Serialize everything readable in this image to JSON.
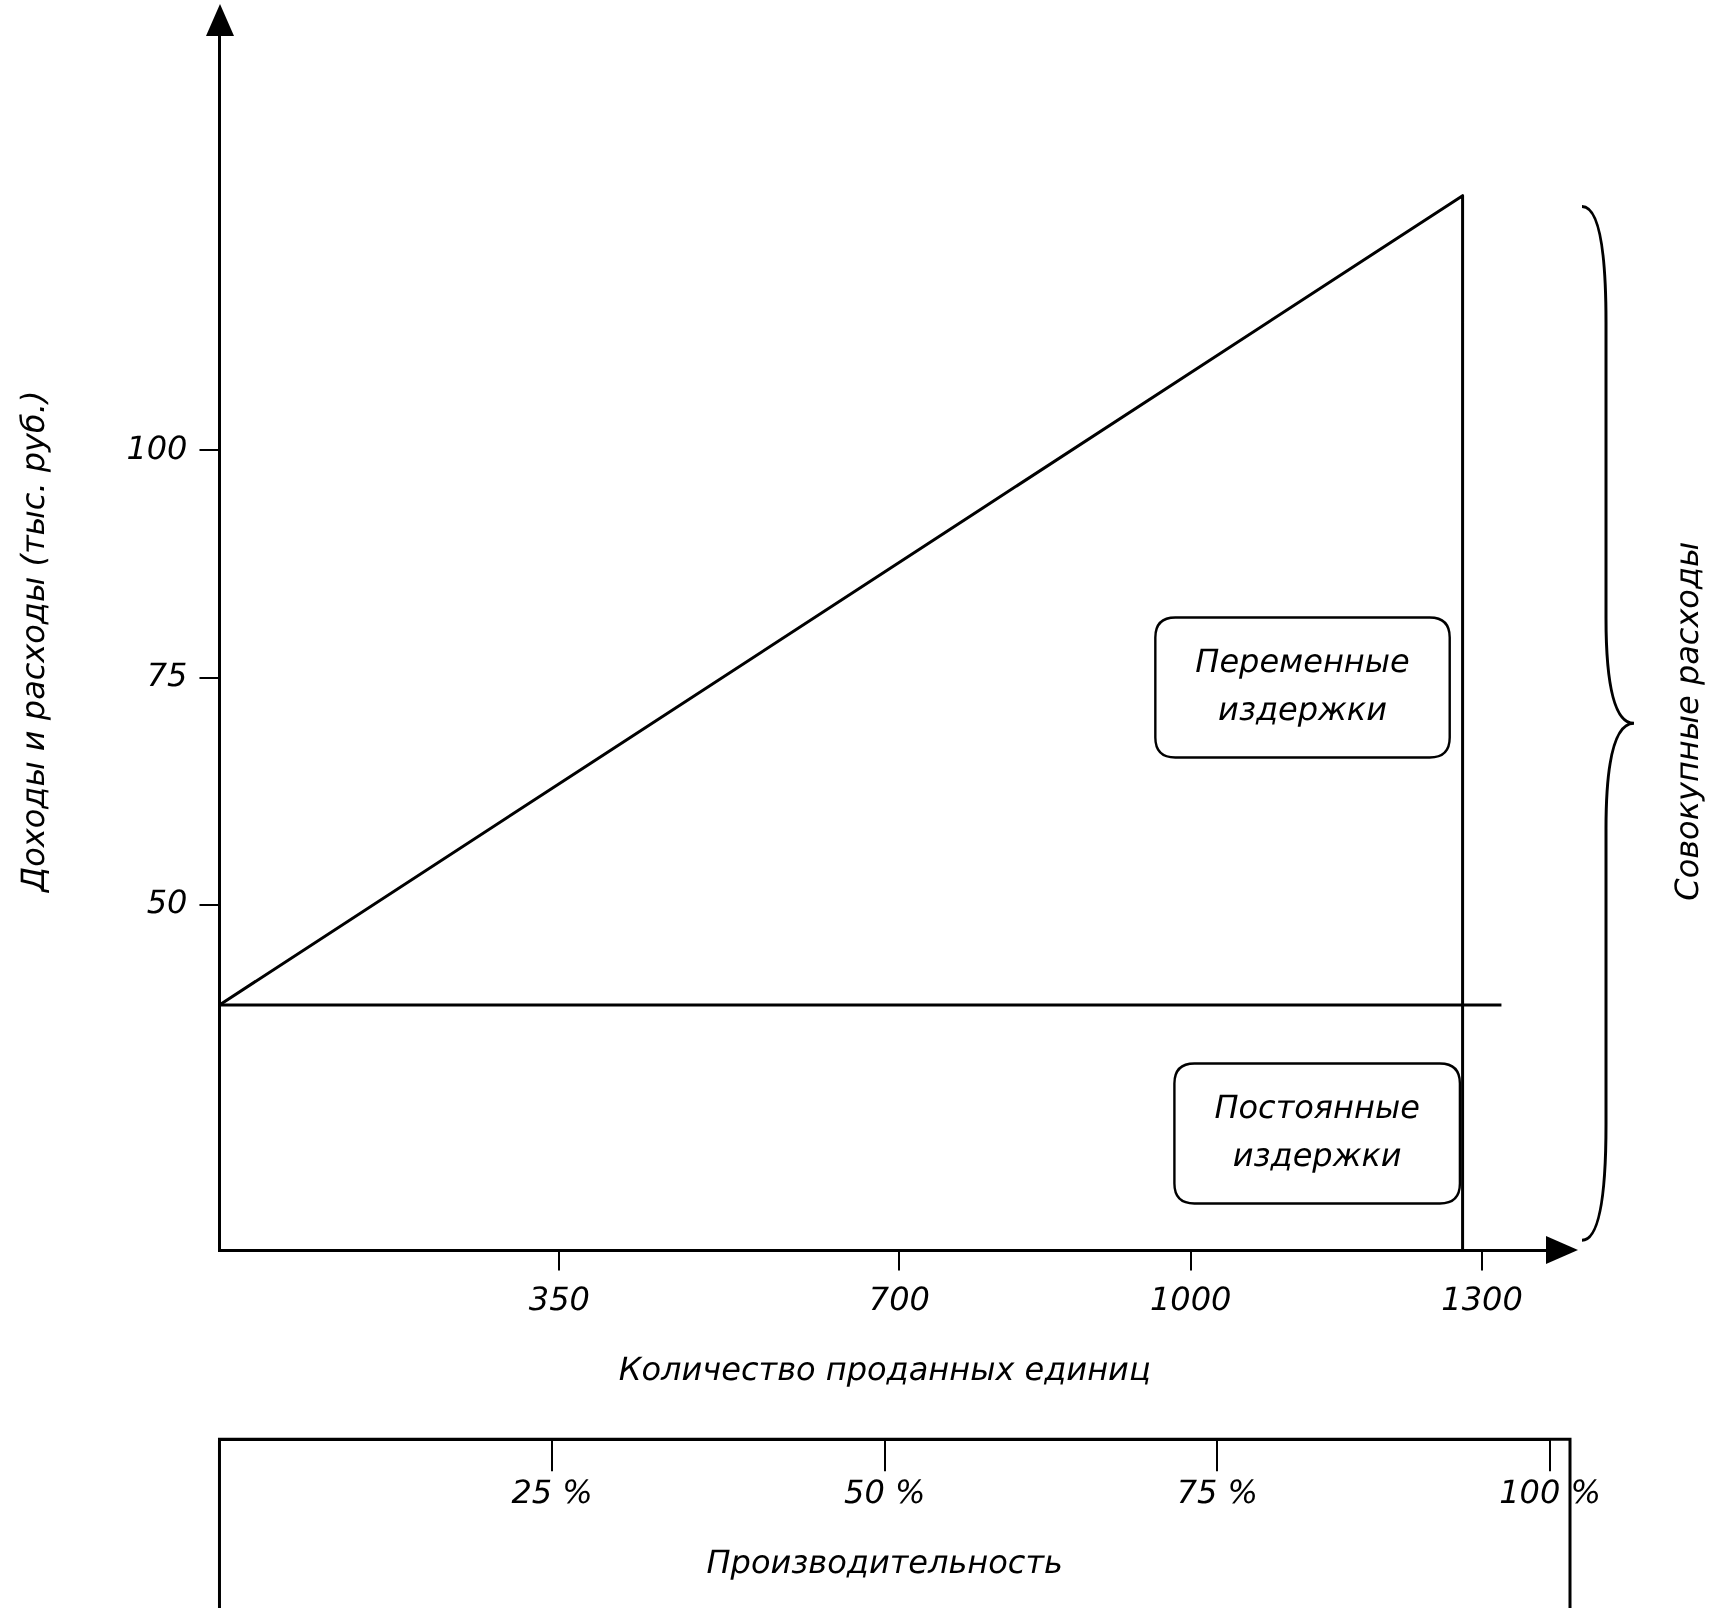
{
  "chart_data": {
    "type": "line",
    "ylabel": "Доходы и расходы (тыс. руб.)",
    "xlabel": "Количество проданных единиц",
    "x2label": "Производительность",
    "xlim": [
      0,
      1370
    ],
    "xticks": [
      350,
      700,
      1000,
      1300
    ],
    "x2lim": [
      0,
      100
    ],
    "x2ticks": [
      {
        "value": 25,
        "label": "25 %"
      },
      {
        "value": 50,
        "label": "50 %"
      },
      {
        "value": 75,
        "label": "75 %"
      },
      {
        "value": 100,
        "label": "100 %"
      }
    ],
    "ylim": [
      12,
      146
    ],
    "yticks": [
      50,
      75,
      100
    ],
    "series": [
      {
        "color": "#000000",
        "x": [
          0,
          1280,
          1280
        ],
        "values": [
          39,
          128,
          12
        ]
      },
      {
        "color": "#000000",
        "x": [
          0,
          1320
        ],
        "values": [
          39,
          39
        ]
      }
    ],
    "annotations": [
      "Переменные издержки",
      "Постоянные издержки",
      "Совокупные расходы"
    ],
    "marker": "none",
    "grid": false,
    "legend": false
  }
}
